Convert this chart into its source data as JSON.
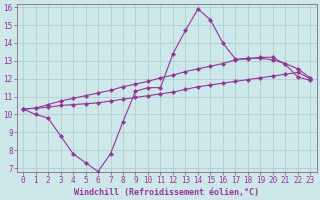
{
  "xlabel": "Windchill (Refroidissement éolien,°C)",
  "bg_color": "#cce8e8",
  "grid_color": "#aacccc",
  "line_color": "#993399",
  "spine_color": "#886688",
  "xlim": [
    -0.5,
    23.5
  ],
  "ylim": [
    6.8,
    16.2
  ],
  "xticks": [
    0,
    1,
    2,
    3,
    4,
    5,
    6,
    7,
    8,
    9,
    10,
    11,
    12,
    13,
    14,
    15,
    16,
    17,
    18,
    19,
    20,
    21,
    22,
    23
  ],
  "yticks": [
    7,
    8,
    9,
    10,
    11,
    12,
    13,
    14,
    15,
    16
  ],
  "line1_x": [
    0,
    1,
    2,
    3,
    4,
    5,
    6,
    7,
    8,
    9,
    10,
    11,
    12,
    13,
    14,
    15,
    16,
    17,
    18,
    19,
    20,
    21,
    22,
    23
  ],
  "line1_y": [
    10.3,
    10.0,
    9.8,
    8.8,
    7.8,
    7.3,
    6.8,
    7.8,
    9.6,
    11.3,
    11.5,
    11.5,
    13.4,
    14.7,
    15.9,
    15.3,
    14.0,
    13.1,
    13.1,
    13.2,
    13.2,
    12.8,
    12.1,
    11.9
  ],
  "line2_x": [
    0,
    1,
    2,
    3,
    4,
    5,
    6,
    7,
    8,
    9,
    10,
    11,
    12,
    13,
    14,
    15,
    16,
    17,
    18,
    19,
    20,
    21,
    22,
    23
  ],
  "line2_y": [
    10.3,
    10.35,
    10.4,
    10.5,
    10.55,
    10.6,
    10.65,
    10.75,
    10.85,
    10.95,
    11.05,
    11.15,
    11.25,
    11.4,
    11.55,
    11.65,
    11.75,
    11.85,
    11.95,
    12.05,
    12.15,
    12.25,
    12.35,
    12.0
  ],
  "line3_x": [
    0,
    1,
    2,
    3,
    4,
    5,
    6,
    7,
    8,
    9,
    10,
    11,
    12,
    13,
    14,
    15,
    16,
    17,
    18,
    19,
    20,
    21,
    22,
    23
  ],
  "line3_y": [
    10.3,
    10.35,
    10.55,
    10.75,
    10.9,
    11.05,
    11.2,
    11.35,
    11.55,
    11.7,
    11.85,
    12.05,
    12.2,
    12.4,
    12.55,
    12.7,
    12.85,
    13.05,
    13.15,
    13.15,
    13.05,
    12.85,
    12.55,
    12.05
  ],
  "tick_fontsize": 5.5,
  "xlabel_fontsize": 6.0,
  "marker_size": 2.2,
  "line_width": 0.8
}
